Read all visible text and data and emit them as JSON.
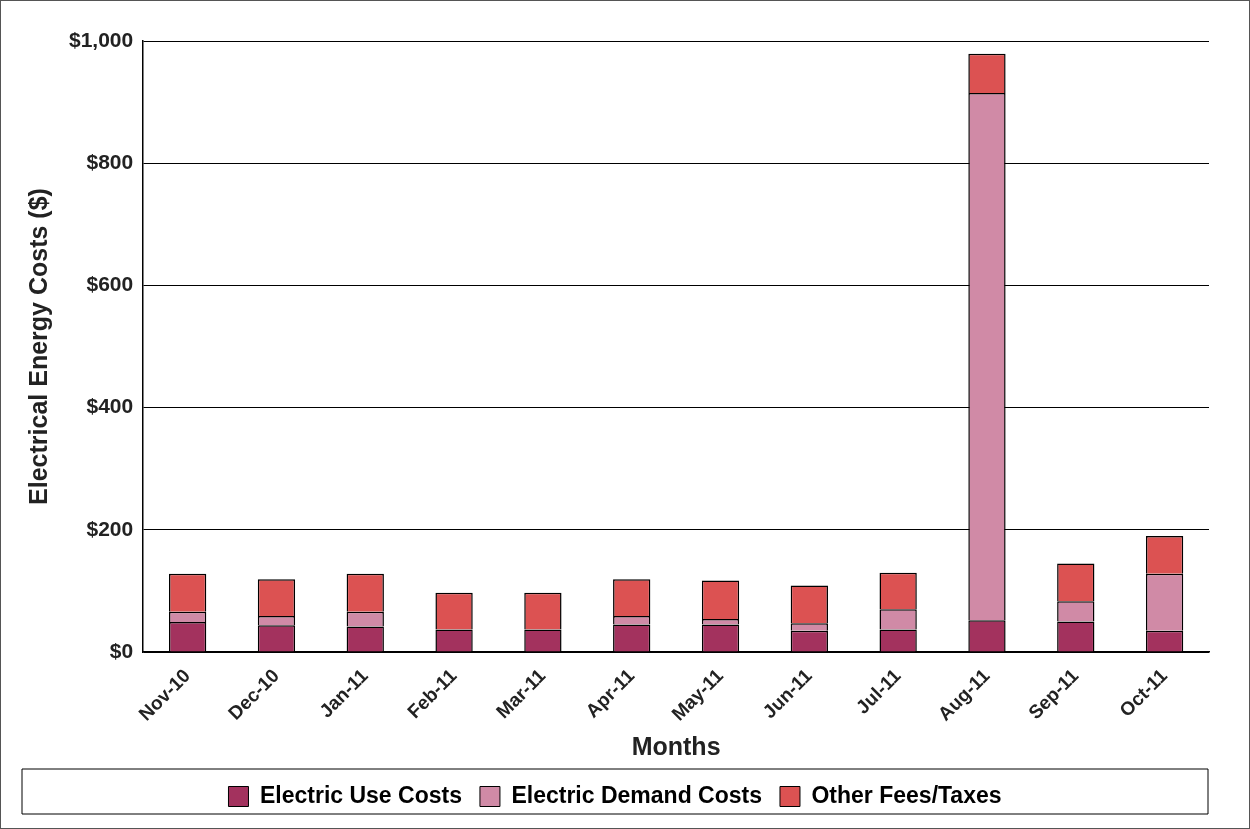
{
  "chart_data": {
    "type": "bar",
    "stacked": true,
    "xlabel": "Months",
    "ylabel": "Electrical Energy Costs ($)",
    "categories": [
      "Nov-10",
      "Dec-10",
      "Jan-11",
      "Feb-11",
      "Mar-11",
      "Apr-11",
      "May-11",
      "Jun-11",
      "Jul-11",
      "Aug-11",
      "Sep-11",
      "Oct-11"
    ],
    "series": [
      {
        "name": "Electric Use Costs",
        "color": "#a3325e",
        "values": [
          49,
          44,
          42,
          37,
          37,
          45,
          45,
          35,
          37,
          52,
          50,
          35
        ]
      },
      {
        "name": "Electric Demand Costs",
        "color": "#d08aa6",
        "values": [
          17,
          15,
          24,
          0,
          0,
          14,
          9,
          12,
          33,
          863,
          33,
          93
        ]
      },
      {
        "name": "Other Fees/Taxes",
        "color": "#dc5252",
        "values": [
          62,
          60,
          62,
          60,
          60,
          60,
          63,
          62,
          60,
          64,
          62,
          62
        ]
      }
    ],
    "ylim": [
      0,
      1000
    ],
    "yticks": [
      {
        "value": 0,
        "label": "$0"
      },
      {
        "value": 200,
        "label": "$200"
      },
      {
        "value": 400,
        "label": "$400"
      },
      {
        "value": 600,
        "label": "$600"
      },
      {
        "value": 800,
        "label": "$800"
      },
      {
        "value": 1000,
        "label": "$1,000"
      }
    ],
    "grid": "y",
    "legend": "bottom"
  }
}
